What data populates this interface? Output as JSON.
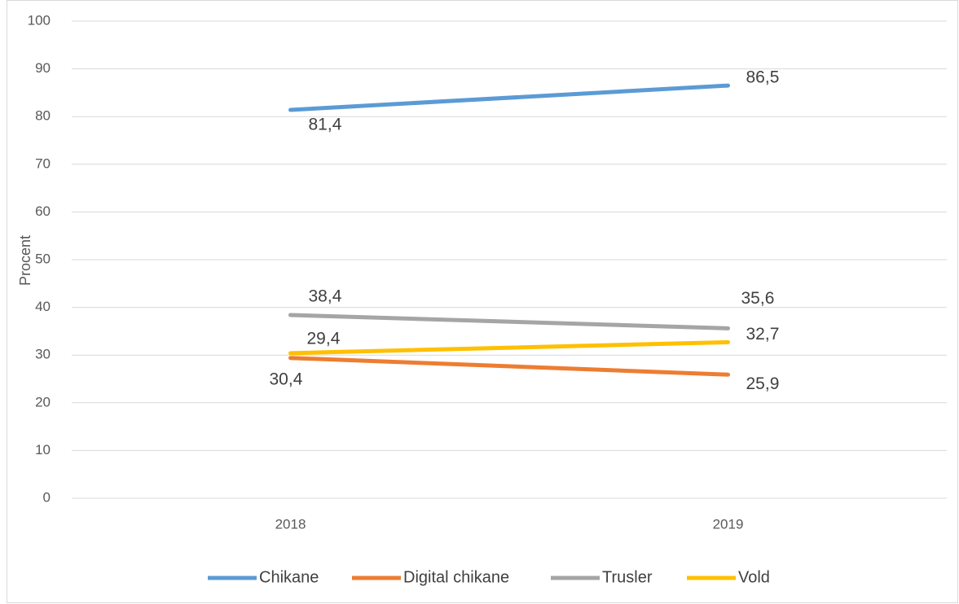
{
  "chart_data": {
    "type": "line",
    "y_label": "Procent",
    "categories": [
      "2018",
      "2019"
    ],
    "series": [
      {
        "name": "Chikane",
        "color": "#5b9bd5",
        "values": [
          81.4,
          86.5
        ],
        "value_labels": [
          "81,4",
          "86,5"
        ]
      },
      {
        "name": "Digital chikane",
        "color": "#ed7d31",
        "values": [
          29.4,
          25.9
        ],
        "value_labels": [
          "29,4",
          "25,9"
        ]
      },
      {
        "name": "Trusler",
        "color": "#a5a5a5",
        "values": [
          38.4,
          35.6
        ],
        "value_labels": [
          "38,4",
          "35,6"
        ]
      },
      {
        "name": "Vold",
        "color": "#ffc000",
        "values": [
          30.4,
          32.7
        ],
        "value_labels": [
          "30,4",
          "32,7"
        ]
      }
    ],
    "ylim": [
      0,
      100
    ],
    "yticks": [
      0,
      10,
      20,
      30,
      40,
      50,
      60,
      70,
      80,
      90,
      100
    ],
    "grid": true,
    "legend": "bottom"
  }
}
